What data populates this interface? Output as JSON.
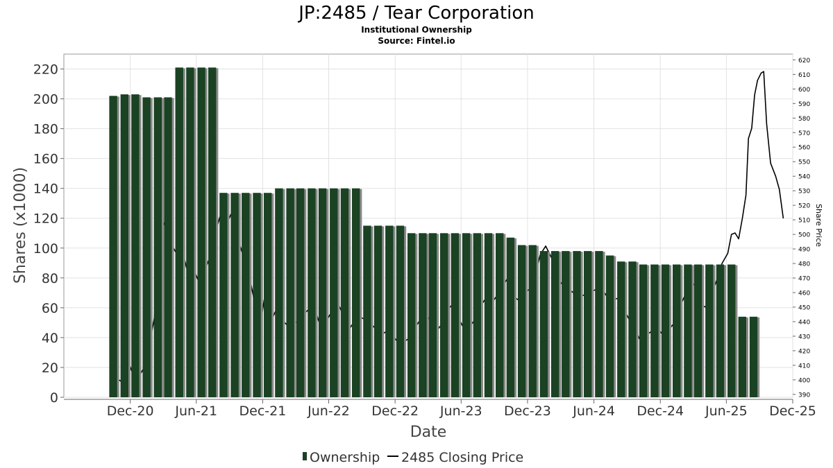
{
  "chart_data": {
    "type": "bar",
    "title": "JP:2485 / Tear Corporation",
    "subtitle": "Institutional Ownership",
    "source": "Source: Fintel.io",
    "xlabel": "Date",
    "ylabel": "Shares (x1000)",
    "y2label": "Share Price",
    "ylim": [
      0,
      230
    ],
    "y2lim": [
      388,
      624
    ],
    "yticks": [
      "0",
      "20",
      "40",
      "60",
      "80",
      "100",
      "120",
      "140",
      "160",
      "180",
      "200",
      "220"
    ],
    "y2ticks": [
      "390",
      "400",
      "410",
      "420",
      "430",
      "440",
      "450",
      "460",
      "470",
      "480",
      "490",
      "500",
      "510",
      "520",
      "530",
      "540",
      "550",
      "560",
      "570",
      "580",
      "590",
      "600",
      "610",
      "620"
    ],
    "xticks": [
      {
        "label": "Dec-20",
        "date": "2020-12-01"
      },
      {
        "label": "Jun-21",
        "date": "2021-06-01"
      },
      {
        "label": "Dec-21",
        "date": "2021-12-01"
      },
      {
        "label": "Jun-22",
        "date": "2022-06-01"
      },
      {
        "label": "Dec-22",
        "date": "2022-12-01"
      },
      {
        "label": "Jun-23",
        "date": "2023-06-01"
      },
      {
        "label": "Dec-23",
        "date": "2023-12-01"
      },
      {
        "label": "Jun-24",
        "date": "2024-06-01"
      },
      {
        "label": "Dec-24",
        "date": "2024-12-01"
      },
      {
        "label": "Jun-25",
        "date": "2025-06-01"
      },
      {
        "label": "Dec-25",
        "date": "2025-12-01"
      }
    ],
    "xlim": [
      "2020-06-01",
      "2025-12-01"
    ],
    "grid": true,
    "legend": {
      "placement": "bottom",
      "entries": [
        {
          "label": "Ownership",
          "kind": "bar",
          "color": "#1a4223"
        },
        {
          "label": "2485 Closing Price",
          "kind": "line",
          "color": "#000000"
        }
      ]
    },
    "series": [
      {
        "name": "Ownership",
        "type": "bar",
        "color": "#1a4223",
        "dates": [
          "2020-10-15",
          "2020-11-15",
          "2020-12-15",
          "2021-01-15",
          "2021-02-15",
          "2021-03-15",
          "2021-04-15",
          "2021-05-15",
          "2021-06-15",
          "2021-07-15",
          "2021-08-15",
          "2021-09-15",
          "2021-10-15",
          "2021-11-15",
          "2021-12-15",
          "2022-01-15",
          "2022-02-15",
          "2022-03-15",
          "2022-04-15",
          "2022-05-15",
          "2022-06-15",
          "2022-07-15",
          "2022-08-15",
          "2022-09-15",
          "2022-10-15",
          "2022-11-15",
          "2022-12-15",
          "2023-01-15",
          "2023-02-15",
          "2023-03-15",
          "2023-04-15",
          "2023-05-15",
          "2023-06-15",
          "2023-07-15",
          "2023-08-15",
          "2023-09-15",
          "2023-10-15",
          "2023-11-15",
          "2023-12-15",
          "2024-01-15",
          "2024-02-15",
          "2024-03-15",
          "2024-04-15",
          "2024-05-15",
          "2024-06-15",
          "2024-07-15",
          "2024-08-15",
          "2024-09-15",
          "2024-10-15",
          "2024-11-15",
          "2024-12-15",
          "2025-01-15",
          "2025-02-15",
          "2025-03-15",
          "2025-04-15",
          "2025-05-15",
          "2025-06-15",
          "2025-07-15",
          "2025-08-15"
        ],
        "values": [
          202,
          203,
          203,
          201,
          201,
          201,
          221,
          221,
          221,
          221,
          137,
          137,
          137,
          137,
          137,
          140,
          140,
          140,
          140,
          140,
          140,
          140,
          140,
          115,
          115,
          115,
          115,
          110,
          110,
          110,
          110,
          110,
          110,
          110,
          110,
          110,
          107,
          102,
          102,
          98,
          98,
          98,
          98,
          98,
          98,
          95,
          91,
          91,
          89,
          89,
          89,
          89,
          89,
          89,
          89,
          89,
          89,
          54,
          54
        ]
      },
      {
        "name": "2485 Closing Price",
        "type": "line",
        "color": "#000000",
        "points": [
          [
            "2020-10-25",
            401
          ],
          [
            "2020-11-05",
            399
          ],
          [
            "2020-11-15",
            410
          ],
          [
            "2020-11-25",
            413
          ],
          [
            "2020-12-08",
            404
          ],
          [
            "2020-12-20",
            400
          ],
          [
            "2021-01-05",
            407
          ],
          [
            "2021-01-20",
            420
          ],
          [
            "2021-02-05",
            442
          ],
          [
            "2021-02-20",
            500
          ],
          [
            "2021-03-05",
            508
          ],
          [
            "2021-03-20",
            495
          ],
          [
            "2021-04-05",
            488
          ],
          [
            "2021-04-20",
            493
          ],
          [
            "2021-05-05",
            477
          ],
          [
            "2021-05-20",
            479
          ],
          [
            "2021-06-05",
            469
          ],
          [
            "2021-06-20",
            472
          ],
          [
            "2021-07-05",
            482
          ],
          [
            "2021-07-20",
            498
          ],
          [
            "2021-08-05",
            512
          ],
          [
            "2021-08-20",
            505
          ],
          [
            "2021-09-05",
            514
          ],
          [
            "2021-09-20",
            500
          ],
          [
            "2021-10-05",
            488
          ],
          [
            "2021-10-20",
            478
          ],
          [
            "2021-11-05",
            458
          ],
          [
            "2021-11-20",
            430
          ],
          [
            "2021-12-05",
            455
          ],
          [
            "2021-12-20",
            438
          ],
          [
            "2022-01-05",
            447
          ],
          [
            "2022-01-20",
            442
          ],
          [
            "2022-02-05",
            438
          ],
          [
            "2022-02-20",
            436
          ],
          [
            "2022-03-05",
            440
          ],
          [
            "2022-03-20",
            444
          ],
          [
            "2022-04-05",
            448
          ],
          [
            "2022-04-20",
            452
          ],
          [
            "2022-05-05",
            440
          ],
          [
            "2022-05-20",
            438
          ],
          [
            "2022-06-05",
            445
          ],
          [
            "2022-06-20",
            456
          ],
          [
            "2022-07-05",
            448
          ],
          [
            "2022-07-20",
            432
          ],
          [
            "2022-08-05",
            438
          ],
          [
            "2022-08-20",
            444
          ],
          [
            "2022-09-05",
            442
          ],
          [
            "2022-09-20",
            440
          ],
          [
            "2022-10-05",
            436
          ],
          [
            "2022-10-20",
            430
          ],
          [
            "2022-11-05",
            433
          ],
          [
            "2022-11-20",
            432
          ],
          [
            "2022-12-05",
            427
          ],
          [
            "2022-12-20",
            425
          ],
          [
            "2023-01-05",
            428
          ],
          [
            "2023-01-20",
            434
          ],
          [
            "2023-02-05",
            440
          ],
          [
            "2023-02-20",
            447
          ],
          [
            "2023-03-05",
            442
          ],
          [
            "2023-03-20",
            432
          ],
          [
            "2023-04-05",
            437
          ],
          [
            "2023-04-20",
            447
          ],
          [
            "2023-05-05",
            451
          ],
          [
            "2023-05-20",
            445
          ],
          [
            "2023-06-05",
            437
          ],
          [
            "2023-06-20",
            435
          ],
          [
            "2023-07-05",
            440
          ],
          [
            "2023-07-20",
            449
          ],
          [
            "2023-08-05",
            455
          ],
          [
            "2023-08-20",
            451
          ],
          [
            "2023-09-05",
            457
          ],
          [
            "2023-09-20",
            463
          ],
          [
            "2023-10-05",
            469
          ],
          [
            "2023-10-20",
            458
          ],
          [
            "2023-11-05",
            455
          ],
          [
            "2023-11-20",
            460
          ],
          [
            "2023-12-05",
            462
          ],
          [
            "2023-12-20",
            470
          ],
          [
            "2024-01-05",
            486
          ],
          [
            "2024-01-20",
            492
          ],
          [
            "2024-02-05",
            484
          ],
          [
            "2024-02-20",
            470
          ],
          [
            "2024-03-05",
            466
          ],
          [
            "2024-03-20",
            463
          ],
          [
            "2024-04-05",
            460
          ],
          [
            "2024-04-20",
            459
          ],
          [
            "2024-05-05",
            458
          ],
          [
            "2024-05-20",
            460
          ],
          [
            "2024-06-05",
            462
          ],
          [
            "2024-06-20",
            464
          ],
          [
            "2024-07-05",
            458
          ],
          [
            "2024-07-20",
            455
          ],
          [
            "2024-08-05",
            456
          ],
          [
            "2024-08-20",
            450
          ],
          [
            "2024-09-05",
            442
          ],
          [
            "2024-09-20",
            436
          ],
          [
            "2024-10-05",
            428
          ],
          [
            "2024-10-20",
            430
          ],
          [
            "2024-11-05",
            433
          ],
          [
            "2024-11-20",
            436
          ],
          [
            "2024-12-05",
            432
          ],
          [
            "2024-12-20",
            433
          ],
          [
            "2025-01-05",
            438
          ],
          [
            "2025-01-20",
            448
          ],
          [
            "2025-02-05",
            457
          ],
          [
            "2025-02-20",
            462
          ],
          [
            "2025-03-05",
            466
          ],
          [
            "2025-03-20",
            452
          ],
          [
            "2025-04-05",
            450
          ],
          [
            "2025-04-20",
            458
          ],
          [
            "2025-05-05",
            468
          ],
          [
            "2025-05-20",
            480
          ],
          [
            "2025-06-05",
            487
          ],
          [
            "2025-06-15",
            500
          ],
          [
            "2025-06-25",
            501
          ],
          [
            "2025-07-05",
            497
          ],
          [
            "2025-07-15",
            511
          ],
          [
            "2025-07-25",
            527
          ],
          [
            "2025-08-01",
            566
          ],
          [
            "2025-08-10",
            573
          ],
          [
            "2025-08-18",
            596
          ],
          [
            "2025-08-26",
            606
          ],
          [
            "2025-09-05",
            611
          ],
          [
            "2025-09-12",
            612
          ],
          [
            "2025-09-20",
            576
          ],
          [
            "2025-10-01",
            549
          ],
          [
            "2025-10-15",
            540
          ],
          [
            "2025-10-25",
            531
          ],
          [
            "2025-11-05",
            511
          ]
        ]
      }
    ]
  }
}
